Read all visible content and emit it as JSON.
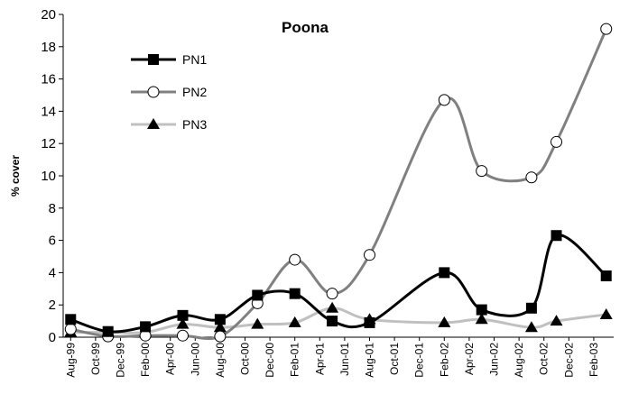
{
  "chart_data": {
    "type": "line",
    "title": "Poona",
    "y_label": "% cover",
    "x": [
      0,
      3,
      6,
      9,
      12,
      15,
      18,
      21,
      24,
      30,
      33,
      37,
      39,
      43
    ],
    "xlim": [
      -0.6,
      43.6
    ],
    "xticks": [
      {
        "value": 0,
        "label": "Aug-99"
      },
      {
        "value": 2,
        "label": "Oct-99"
      },
      {
        "value": 4,
        "label": "Dec-99"
      },
      {
        "value": 6,
        "label": "Feb-00"
      },
      {
        "value": 8,
        "label": "Apr-00"
      },
      {
        "value": 10,
        "label": "Jun-00"
      },
      {
        "value": 12,
        "label": "Aug-00"
      },
      {
        "value": 14,
        "label": "Oct-00"
      },
      {
        "value": 16,
        "label": "Dec-00"
      },
      {
        "value": 18,
        "label": "Feb-01"
      },
      {
        "value": 20,
        "label": "Apr-01"
      },
      {
        "value": 22,
        "label": "Jun-01"
      },
      {
        "value": 24,
        "label": "Aug-01"
      },
      {
        "value": 26,
        "label": "Oct-01"
      },
      {
        "value": 28,
        "label": "Dec-01"
      },
      {
        "value": 30,
        "label": "Feb-02"
      },
      {
        "value": 32,
        "label": "Apr-02"
      },
      {
        "value": 34,
        "label": "Jun-02"
      },
      {
        "value": 36,
        "label": "Aug-02"
      },
      {
        "value": 38,
        "label": "Oct-02"
      },
      {
        "value": 40,
        "label": "Dec-02"
      },
      {
        "value": 42,
        "label": "Feb-03"
      }
    ],
    "ylim": [
      0,
      20
    ],
    "yticks": [
      0,
      2,
      4,
      6,
      8,
      10,
      12,
      14,
      16,
      18,
      20
    ],
    "grid": false,
    "smooth": true,
    "legend": "upper left",
    "series": [
      {
        "name": "PN1",
        "color": "#000000",
        "marker": "square",
        "values": [
          1.1,
          0.35,
          0.65,
          1.35,
          1.1,
          2.6,
          2.7,
          1.0,
          0.9,
          4.0,
          1.7,
          1.8,
          6.3,
          3.8
        ]
      },
      {
        "name": "PN2",
        "color": "#808080",
        "marker": "circle",
        "values": [
          0.5,
          0.05,
          0.1,
          0.1,
          0.05,
          2.1,
          4.8,
          2.7,
          5.1,
          14.7,
          10.3,
          9.9,
          12.1,
          19.1
        ]
      },
      {
        "name": "PN3",
        "color": "#c0c0c0",
        "marker": "triangle",
        "values": [
          0.3,
          0.3,
          0.3,
          0.8,
          0.6,
          0.8,
          0.9,
          1.8,
          1.1,
          0.9,
          1.1,
          0.6,
          1.0,
          1.4
        ]
      }
    ]
  }
}
